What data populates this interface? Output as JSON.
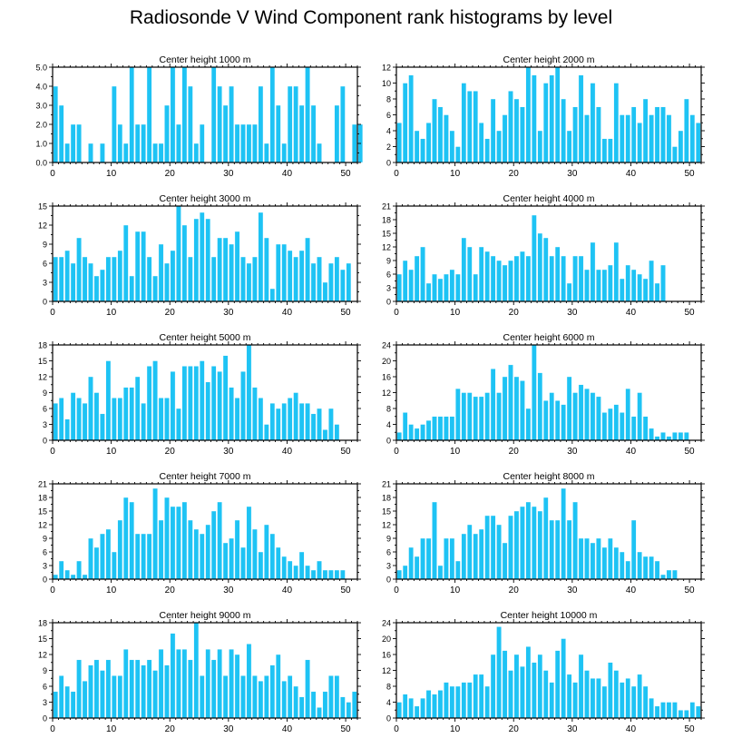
{
  "title": "Radiosonde V Wind Component rank histograms by level",
  "colors": {
    "bar": "#1EC3F4",
    "bar_edge": "#ffffff",
    "axis": "#000000"
  },
  "chart_data": [
    {
      "type": "bar",
      "title": "Center height 1000 m",
      "ylim": [
        0,
        5
      ],
      "yticks": [
        0,
        1,
        2,
        3,
        4,
        5
      ],
      "ytick_labels": [
        "0.0",
        "1.0",
        "2.0",
        "3.0",
        "4.0",
        "5.0"
      ],
      "xlim": [
        0,
        52
      ],
      "xticks": [
        0,
        10,
        20,
        30,
        40,
        50
      ],
      "values": [
        4,
        3,
        1,
        2,
        2,
        0,
        1,
        0,
        1,
        0,
        4,
        2,
        1,
        5,
        2,
        2,
        5,
        1,
        1,
        3,
        5,
        2,
        5,
        4,
        1,
        2,
        0,
        5,
        4,
        3,
        4,
        2,
        2,
        2,
        2,
        4,
        1,
        5,
        3,
        1,
        4,
        4,
        3,
        5,
        3,
        1,
        0,
        0,
        3,
        4,
        0,
        2,
        2
      ]
    },
    {
      "type": "bar",
      "title": "Center height 2000 m",
      "ylim": [
        0,
        12
      ],
      "yticks": [
        0,
        2,
        4,
        6,
        8,
        10,
        12
      ],
      "ytick_labels": [
        "0",
        "2",
        "4",
        "6",
        "8",
        "10",
        "12"
      ],
      "xlim": [
        0,
        52
      ],
      "xticks": [
        0,
        10,
        20,
        30,
        40,
        50
      ],
      "values": [
        5,
        10,
        11,
        4,
        3,
        5,
        8,
        7,
        6,
        4,
        2,
        10,
        9,
        9,
        5,
        3,
        8,
        4,
        6,
        9,
        8,
        7,
        12,
        11,
        4,
        10,
        11,
        12,
        8,
        4,
        7,
        11,
        6,
        10,
        7,
        3,
        3,
        10,
        6,
        6,
        7,
        5,
        8,
        6,
        7,
        7,
        6,
        2,
        4,
        8,
        6,
        5
      ]
    },
    {
      "type": "bar",
      "title": "Center height 3000 m",
      "ylim": [
        0,
        15
      ],
      "yticks": [
        0,
        3,
        6,
        9,
        12,
        15
      ],
      "ytick_labels": [
        "0",
        "3",
        "6",
        "9",
        "12",
        "15"
      ],
      "xlim": [
        0,
        52
      ],
      "xticks": [
        0,
        10,
        20,
        30,
        40,
        50
      ],
      "values": [
        7,
        7,
        8,
        6,
        10,
        7,
        6,
        4,
        5,
        7,
        7,
        8,
        12,
        4,
        11,
        11,
        7,
        4,
        9,
        6,
        8,
        15,
        12,
        7,
        13,
        14,
        13,
        7,
        10,
        10,
        9,
        11,
        7,
        6,
        7,
        14,
        10,
        2,
        9,
        9,
        8,
        7,
        8,
        10,
        6,
        7,
        3,
        6,
        7,
        5,
        6
      ]
    },
    {
      "type": "bar",
      "title": "Center height 4000 m",
      "ylim": [
        0,
        21
      ],
      "yticks": [
        0,
        3,
        6,
        9,
        12,
        15,
        18,
        21
      ],
      "ytick_labels": [
        "0",
        "3",
        "6",
        "9",
        "12",
        "15",
        "18",
        "21"
      ],
      "xlim": [
        0,
        52
      ],
      "xticks": [
        0,
        10,
        20,
        30,
        40,
        50
      ],
      "values": [
        6,
        9,
        7,
        10,
        12,
        4,
        6,
        5,
        6,
        7,
        6,
        14,
        12,
        6,
        12,
        11,
        10,
        9,
        8,
        9,
        10,
        11,
        10,
        19,
        15,
        14,
        10,
        12,
        10,
        4,
        10,
        10,
        7,
        13,
        7,
        7,
        8,
        13,
        5,
        8,
        7,
        6,
        5,
        9,
        4,
        8
      ]
    },
    {
      "type": "bar",
      "title": "Center height 5000 m",
      "ylim": [
        0,
        18
      ],
      "yticks": [
        0,
        3,
        6,
        9,
        12,
        15,
        18
      ],
      "ytick_labels": [
        "0",
        "3",
        "6",
        "9",
        "12",
        "15",
        "18"
      ],
      "xlim": [
        0,
        52
      ],
      "xticks": [
        0,
        10,
        20,
        30,
        40,
        50
      ],
      "values": [
        7,
        8,
        4,
        9,
        8,
        7,
        12,
        9,
        5,
        15,
        8,
        8,
        10,
        10,
        12,
        7,
        14,
        15,
        8,
        8,
        13,
        6,
        14,
        14,
        14,
        15,
        11,
        14,
        13,
        16,
        10,
        8,
        13,
        18,
        10,
        8,
        3,
        7,
        6,
        7,
        8,
        9,
        7,
        7,
        5,
        6,
        2,
        6,
        3
      ]
    },
    {
      "type": "bar",
      "title": "Center height 6000 m",
      "ylim": [
        0,
        24
      ],
      "yticks": [
        0,
        4,
        8,
        12,
        16,
        20,
        24
      ],
      "ytick_labels": [
        "0",
        "4",
        "8",
        "12",
        "16",
        "20",
        "24"
      ],
      "xlim": [
        0,
        52
      ],
      "xticks": [
        0,
        10,
        20,
        30,
        40,
        50
      ],
      "values": [
        2,
        7,
        4,
        3,
        4,
        5,
        6,
        6,
        6,
        6,
        13,
        12,
        12,
        11,
        11,
        12,
        18,
        12,
        16,
        19,
        16,
        15,
        8,
        24,
        17,
        10,
        12,
        10,
        9,
        16,
        12,
        14,
        13,
        12,
        11,
        7,
        8,
        9,
        7,
        13,
        6,
        12,
        6,
        3,
        1,
        2,
        1,
        2,
        2,
        2
      ]
    },
    {
      "type": "bar",
      "title": "Center height 7000 m",
      "ylim": [
        0,
        21
      ],
      "yticks": [
        0,
        3,
        6,
        9,
        12,
        15,
        18,
        21
      ],
      "ytick_labels": [
        "0",
        "3",
        "6",
        "9",
        "12",
        "15",
        "18",
        "21"
      ],
      "xlim": [
        0,
        52
      ],
      "xticks": [
        0,
        10,
        20,
        30,
        40,
        50
      ],
      "values": [
        1,
        4,
        2,
        1,
        4,
        1,
        9,
        7,
        10,
        11,
        6,
        13,
        18,
        17,
        10,
        10,
        10,
        20,
        13,
        18,
        16,
        16,
        17,
        13,
        11,
        10,
        12,
        15,
        17,
        8,
        9,
        13,
        7,
        16,
        11,
        6,
        12,
        10,
        7,
        5,
        4,
        3,
        6,
        3,
        2,
        4,
        2,
        2,
        2,
        2
      ]
    },
    {
      "type": "bar",
      "title": "Center height 8000 m",
      "ylim": [
        0,
        21
      ],
      "yticks": [
        0,
        3,
        6,
        9,
        12,
        15,
        18,
        21
      ],
      "ytick_labels": [
        "0",
        "3",
        "6",
        "9",
        "12",
        "15",
        "18",
        "21"
      ],
      "xlim": [
        0,
        52
      ],
      "xticks": [
        0,
        10,
        20,
        30,
        40,
        50
      ],
      "values": [
        2,
        3,
        7,
        5,
        9,
        9,
        17,
        3,
        9,
        9,
        4,
        10,
        12,
        10,
        11,
        14,
        14,
        12,
        8,
        14,
        15,
        16,
        17,
        16,
        15,
        18,
        13,
        13,
        20,
        13,
        17,
        9,
        9,
        8,
        9,
        7,
        9,
        7,
        6,
        4,
        13,
        6,
        5,
        5,
        4,
        1,
        2,
        2
      ]
    },
    {
      "type": "bar",
      "title": "Center height 9000 m",
      "ylim": [
        0,
        18
      ],
      "yticks": [
        0,
        3,
        6,
        9,
        12,
        15,
        18
      ],
      "ytick_labels": [
        "0",
        "3",
        "6",
        "9",
        "12",
        "15",
        "18"
      ],
      "xlim": [
        0,
        52
      ],
      "xticks": [
        0,
        10,
        20,
        30,
        40,
        50
      ],
      "values": [
        5,
        8,
        6,
        5,
        11,
        7,
        10,
        11,
        9,
        11,
        8,
        8,
        13,
        11,
        11,
        10,
        11,
        9,
        13,
        10,
        16,
        13,
        13,
        11,
        18,
        8,
        13,
        11,
        13,
        8,
        13,
        12,
        8,
        14,
        8,
        7,
        8,
        10,
        12,
        7,
        8,
        6,
        4,
        11,
        5,
        2,
        5,
        8,
        8,
        4,
        3,
        5
      ]
    },
    {
      "type": "bar",
      "title": "Center height 10000 m",
      "ylim": [
        0,
        24
      ],
      "yticks": [
        0,
        4,
        8,
        12,
        16,
        20,
        24
      ],
      "ytick_labels": [
        "0",
        "4",
        "8",
        "12",
        "16",
        "20",
        "24"
      ],
      "xlim": [
        0,
        52
      ],
      "xticks": [
        0,
        10,
        20,
        30,
        40,
        50
      ],
      "values": [
        4,
        6,
        5,
        3,
        5,
        7,
        6,
        7,
        9,
        8,
        8,
        9,
        9,
        11,
        11,
        8,
        16,
        23,
        17,
        12,
        16,
        13,
        18,
        14,
        16,
        12,
        9,
        17,
        20,
        11,
        9,
        16,
        12,
        10,
        10,
        8,
        14,
        12,
        9,
        10,
        8,
        11,
        8,
        5,
        3,
        4,
        4,
        4,
        2,
        2,
        4,
        3
      ]
    }
  ]
}
